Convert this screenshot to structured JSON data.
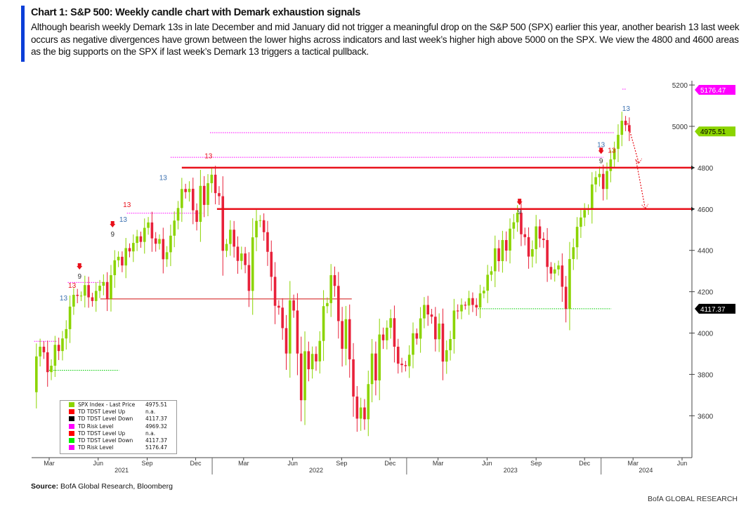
{
  "header": {
    "title": "Chart 1: S&P 500: Weekly candle chart with Demark exhaustion signals",
    "subtitle": "Although bearish weekly Demark 13s in late December and mid January did not trigger a meaningful drop on the S&P 500 (SPX) earlier this year, another bearish 13 last week occurs as negative divergences have grown between the lower highs across indicators and last week’s higher high above 5000 on the SPX. We view the 4800 and 4600 areas as the big supports on the SPX if last week’s Demark 13 triggers a tactical pullback."
  },
  "footer": {
    "source_label": "Source:",
    "source": " BofA Global Research, Bloomberg",
    "brand": "BofA GLOBAL RESEARCH"
  },
  "chart_data": {
    "type": "candlestick",
    "frequency": "weekly",
    "start_date": "2021-02-05",
    "open_first": 3714,
    "closes": [
      3887,
      3934,
      3907,
      3811,
      3842,
      3943,
      3913,
      3974,
      4019,
      4128,
      4185,
      4180,
      4181,
      4232,
      4173,
      4155,
      4204,
      4229,
      4247,
      4166,
      4280,
      4352,
      4369,
      4327,
      4411,
      4395,
      4436,
      4468,
      4441,
      4509,
      4535,
      4458,
      4432,
      4455,
      4357,
      4391,
      4471,
      4544,
      4605,
      4697,
      4682,
      4698,
      4594,
      4538,
      4712,
      4620,
      4725,
      4766,
      4677,
      4662,
      4398,
      4431,
      4500,
      4418,
      4349,
      4385,
      4329,
      4204,
      4463,
      4543,
      4546,
      4488,
      4393,
      4272,
      4132,
      4123,
      4024,
      3901,
      4158,
      4109,
      3901,
      3675,
      3912,
      3825,
      3899,
      3863,
      3962,
      4130,
      4145,
      4280,
      4228,
      4058,
      3924,
      4067,
      3873,
      3693,
      3586,
      3640,
      3583,
      3753,
      3901,
      3771,
      3993,
      3965,
      4026,
      4072,
      3934,
      3852,
      3845,
      3840,
      3895,
      3999,
      3973,
      4071,
      4136,
      4090,
      4079,
      3970,
      4046,
      3862,
      3917,
      3971,
      4109,
      4105,
      4137,
      4133,
      4169,
      4136,
      4124,
      4192,
      4205,
      4282,
      4299,
      4410,
      4348,
      4450,
      4399,
      4505,
      4536,
      4582,
      4478,
      4464,
      4370,
      4406,
      4516,
      4457,
      4450,
      4320,
      4288,
      4308,
      4327,
      4224,
      4117,
      4358,
      4415,
      4514,
      4559,
      4595,
      4604,
      4719,
      4754,
      4770,
      4697,
      4784,
      4840,
      4891,
      4959,
      5027,
      5006,
      4975.51
    ],
    "y_ticks": [
      3600,
      3800,
      4000,
      4200,
      4400,
      4600,
      4800,
      5000,
      5200
    ],
    "ylim": [
      3420,
      5270
    ],
    "x_ticks": [
      {
        "label": "Mar",
        "date": "2021-03-01"
      },
      {
        "label": "Jun",
        "date": "2021-06-01"
      },
      {
        "label": "Sep",
        "date": "2021-09-01"
      },
      {
        "label": "Dec",
        "date": "2021-12-01"
      },
      {
        "label": "Mar",
        "date": "2022-03-01"
      },
      {
        "label": "Jun",
        "date": "2022-06-01"
      },
      {
        "label": "Sep",
        "date": "2022-09-01"
      },
      {
        "label": "Dec",
        "date": "2022-12-01"
      },
      {
        "label": "Mar",
        "date": "2023-03-01"
      },
      {
        "label": "Jun",
        "date": "2023-06-01"
      },
      {
        "label": "Sep",
        "date": "2023-09-01"
      },
      {
        "label": "Dec",
        "date": "2023-12-01"
      },
      {
        "label": "Mar",
        "date": "2024-03-01"
      },
      {
        "label": "Jun",
        "date": "2024-06-01"
      }
    ],
    "years": [
      {
        "label": "2021",
        "date": "2021-07-15"
      },
      {
        "label": "2022",
        "date": "2022-07-15"
      },
      {
        "label": "2023",
        "date": "2023-07-15"
      },
      {
        "label": "2024",
        "date": "2024-03-25"
      }
    ],
    "price_tags": [
      {
        "label": "5176.47",
        "value": 5176.47,
        "color": "#ff00ff",
        "text_color": "#ffffff"
      },
      {
        "label": "4975.51",
        "value": 4975.51,
        "color": "#8bd400",
        "text_color": "#000000"
      },
      {
        "label": "4117.37",
        "value": 4117.37,
        "color": "#000000",
        "text_color": "#ffffff"
      }
    ],
    "support_lines": [
      {
        "value": 4800,
        "from": "2021-11-05",
        "color": "#e8101a"
      },
      {
        "value": 4600,
        "from": "2022-01-10",
        "color": "#e8101a"
      }
    ],
    "levels": [
      {
        "value": 4165,
        "from": "2021-06-05",
        "to": "2022-09-20",
        "style": "solid",
        "color": "#d01010"
      },
      {
        "value": 4969.32,
        "from": "2021-12-28",
        "to": "2024-01-25",
        "style": "dotted",
        "color": "#ff00ff"
      },
      {
        "value": 4850,
        "from": "2021-10-15",
        "to": "2024-01-05",
        "style": "dotted",
        "color": "#ff00ff"
      },
      {
        "value": 4580,
        "from": "2021-07-25",
        "to": "2021-12-15",
        "style": "dotted",
        "color": "#ff00ff"
      },
      {
        "value": 4245,
        "from": "2021-04-05",
        "to": "2021-06-10",
        "style": "dotted",
        "color": "#ff00ff"
      },
      {
        "value": 3960,
        "from": "2021-02-01",
        "to": "2021-03-15",
        "style": "dotted",
        "color": "#ff00ff"
      },
      {
        "value": 3820,
        "from": "2021-03-01",
        "to": "2021-07-10",
        "style": "dotted",
        "color": "#00cc00"
      },
      {
        "value": 4117.37,
        "from": "2023-05-15",
        "to": "2024-01-20",
        "style": "dotted",
        "color": "#00cc00"
      },
      {
        "value": 5180,
        "from": "2024-02-10",
        "to": "2024-02-16",
        "style": "dotted",
        "color": "#ff00ff"
      }
    ],
    "signals": [
      {
        "label": "13",
        "date": "2021-03-28",
        "value": 4158,
        "color": "#3a70b0"
      },
      {
        "label": "13",
        "date": "2021-04-13",
        "value": 4219,
        "color": "#e8101a"
      },
      {
        "label": "9",
        "date": "2021-04-27",
        "value": 4263,
        "color": "#333333",
        "arrow": true
      },
      {
        "label": "9",
        "date": "2021-06-28",
        "value": 4467,
        "color": "#333333",
        "arrow": true
      },
      {
        "label": "13",
        "date": "2021-07-18",
        "value": 4538,
        "color": "#3a70b0"
      },
      {
        "label": "13",
        "date": "2021-07-25",
        "value": 4572,
        "color": "#e8101a"
      },
      {
        "label": "13",
        "date": "2021-10-01",
        "value": 4740,
        "color": "#3a70b0"
      },
      {
        "label": "13",
        "date": "2021-12-25",
        "value": 4845,
        "color": "#e8101a"
      },
      {
        "label": "9",
        "date": "2023-08-01",
        "value": 4575,
        "color": "#333333",
        "arrow": true
      },
      {
        "label": "9",
        "date": "2024-01-01",
        "value": 4822,
        "color": "#333333",
        "arrow": true
      },
      {
        "label": "13",
        "date": "2024-01-01",
        "value": 4900,
        "color": "#3a70b0"
      },
      {
        "label": "13",
        "date": "2024-01-21",
        "value": 4873,
        "color": "#e8101a"
      },
      {
        "label": "13",
        "date": "2024-02-17",
        "value": 5075,
        "color": "#3a70b0"
      }
    ],
    "projection": {
      "from_date": "2024-02-20",
      "from_value": 5015,
      "mid_date": "2024-03-12",
      "mid_value": 4820,
      "to_date": "2024-03-24",
      "to_value": 4600,
      "color": "#e8101a"
    },
    "legend": [
      {
        "label": "SPX Index - Last Price",
        "value": "4975.51",
        "color": "#8bd400"
      },
      {
        "label": "TD TDST Level Up",
        "value": "n.a.",
        "color": "#ff0000"
      },
      {
        "label": "TD TDST Level Down",
        "value": "4117.37",
        "color": "#000000"
      },
      {
        "label": "TD Risk Level",
        "value": "4969.32",
        "color": "#ff00ff"
      },
      {
        "label": "TD TDST Level Up",
        "value": "n.a.",
        "color": "#ff0000"
      },
      {
        "label": "TD TDST Level Down",
        "value": "4117.37",
        "color": "#00ee00"
      },
      {
        "label": "TD Risk Level",
        "value": "5176.47",
        "color": "#ff00ff"
      }
    ],
    "colors": {
      "up": "#8bd400",
      "down": "#e8213a"
    }
  }
}
